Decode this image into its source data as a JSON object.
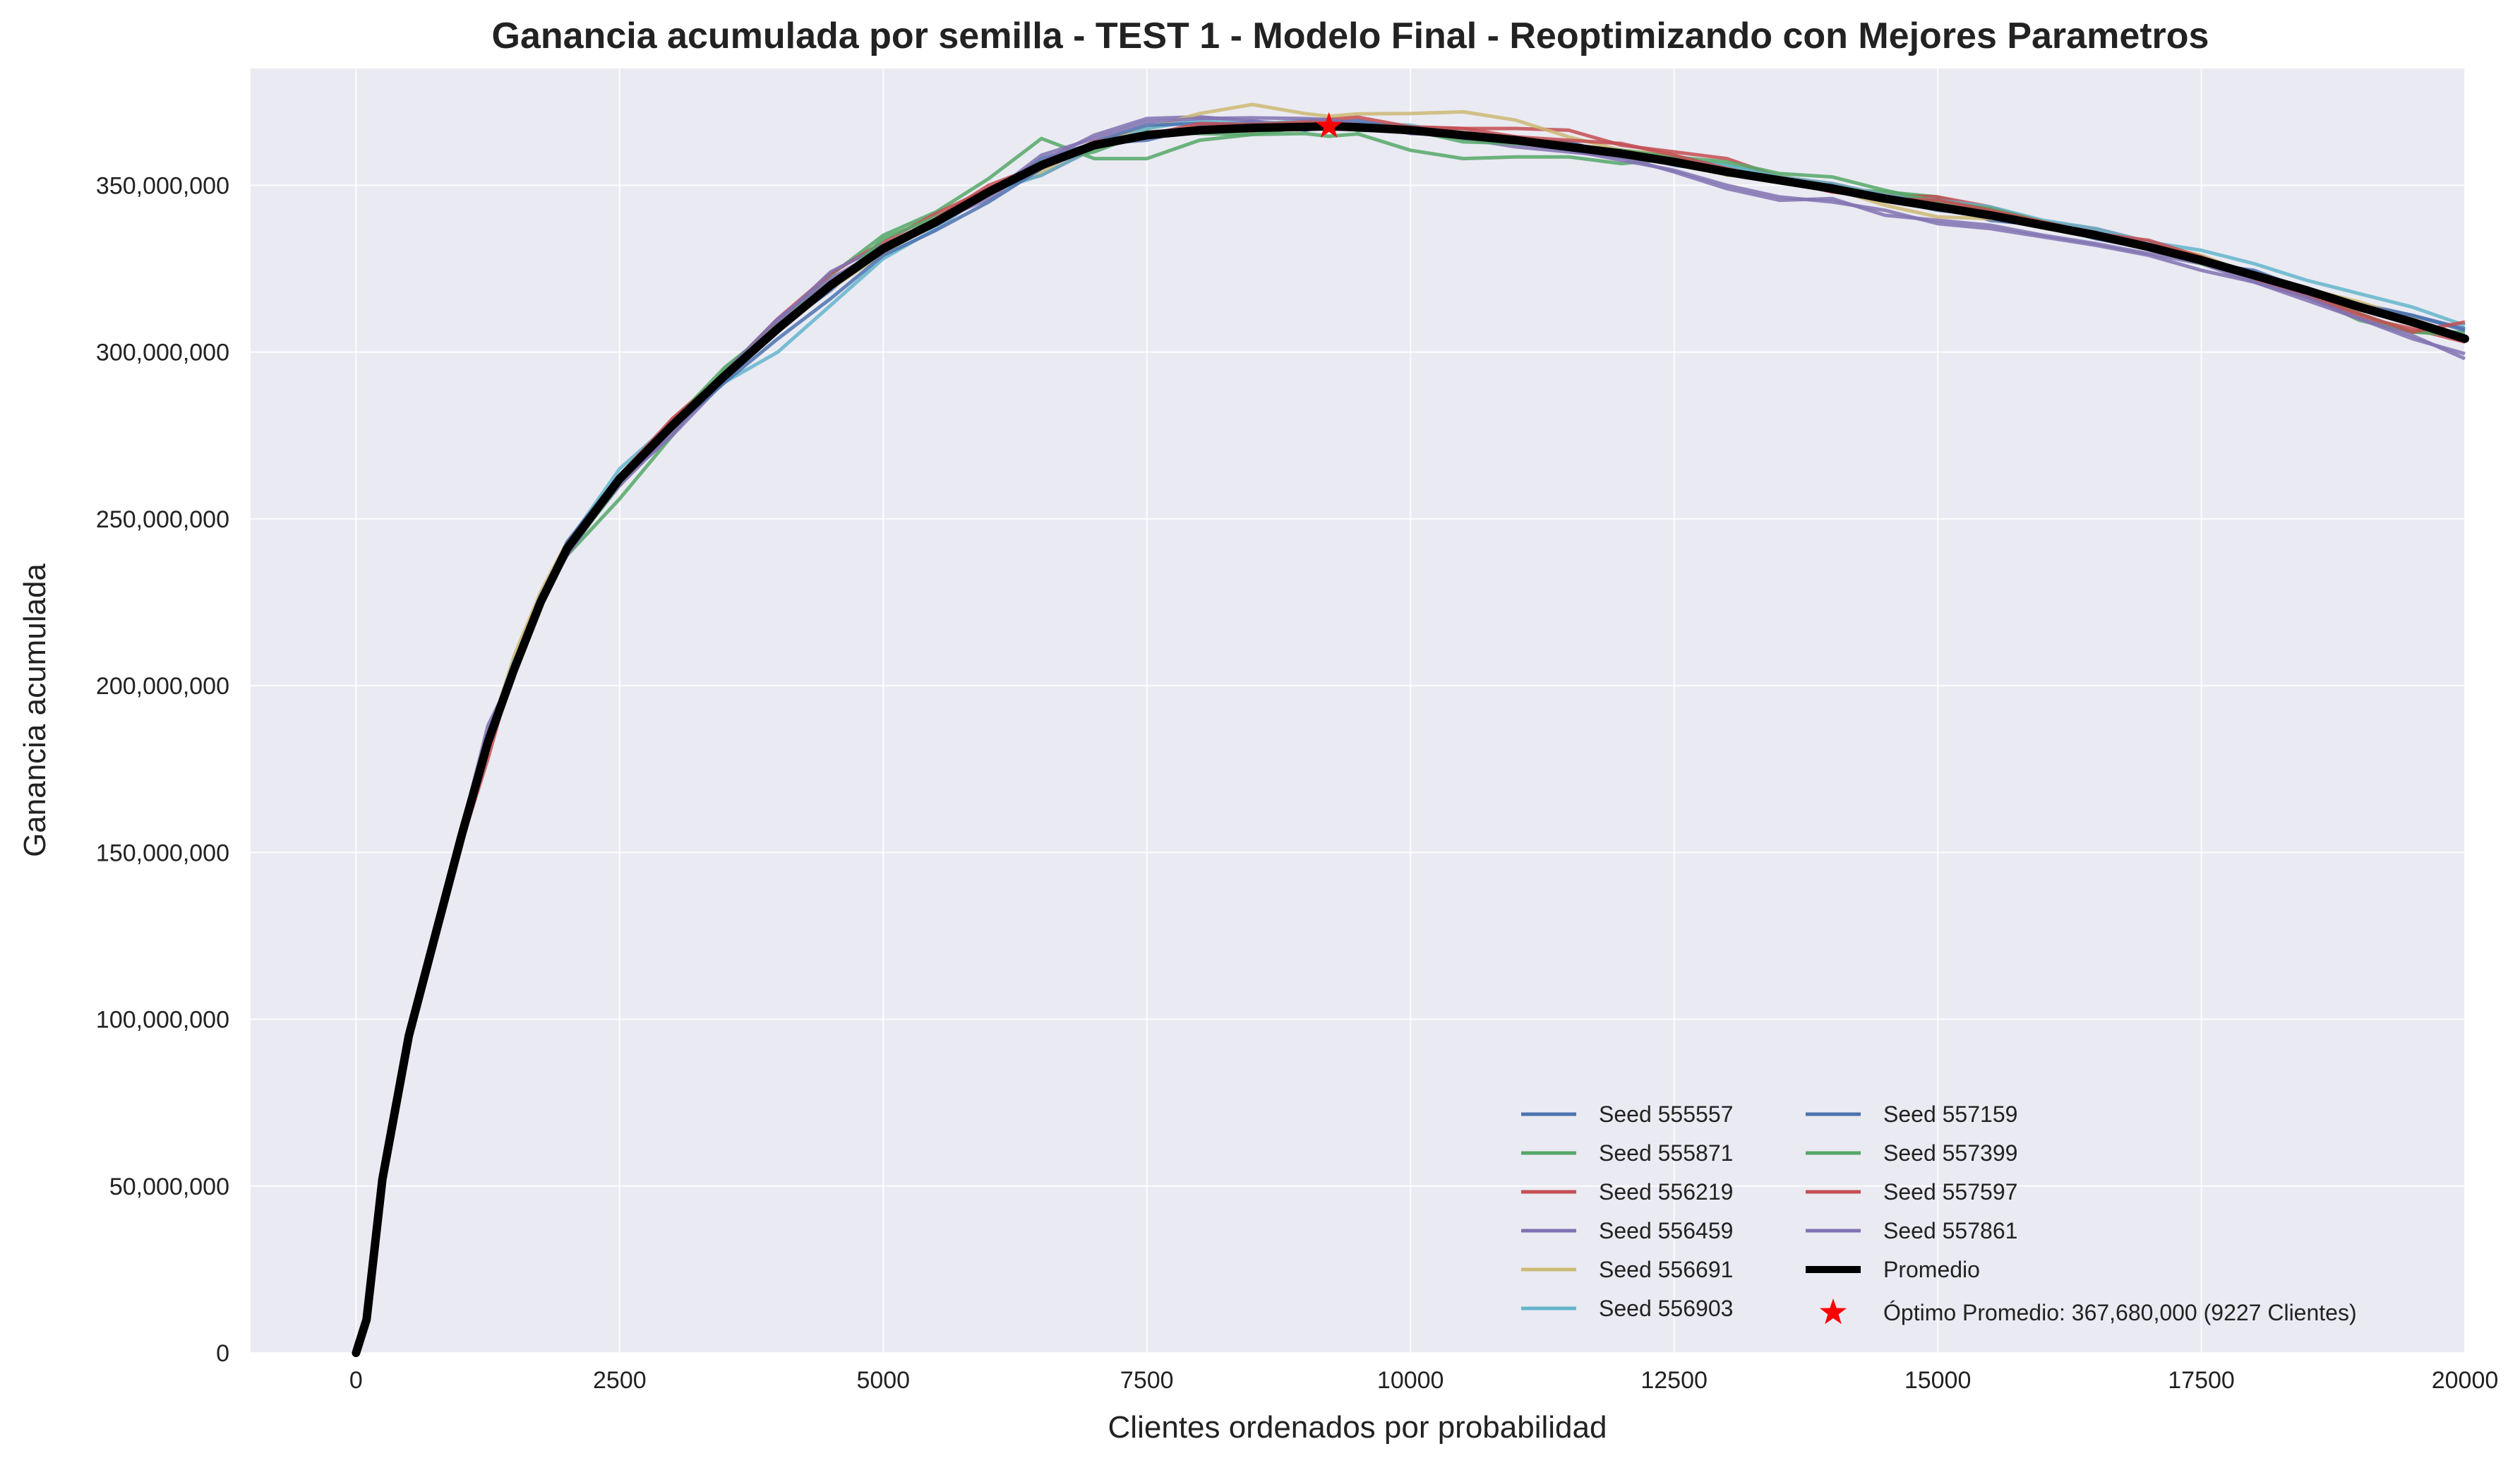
{
  "chart_data": {
    "type": "line",
    "title": "Ganancia acumulada por semilla - TEST 1 - Modelo Final  - Reoptimizando con Mejores Parametros",
    "xlabel": "Clientes ordenados por probabilidad",
    "ylabel": "Ganancia acumulada",
    "xlim": [
      -1000,
      20000
    ],
    "ylim": [
      0,
      385000000
    ],
    "xticks": [
      0,
      2500,
      5000,
      7500,
      10000,
      12500,
      15000,
      17500,
      20000
    ],
    "xtick_labels": [
      "0",
      "2500",
      "5000",
      "7500",
      "10000",
      "12500",
      "15000",
      "17500",
      "20000"
    ],
    "yticks": [
      0,
      50000000,
      100000000,
      150000000,
      200000000,
      250000000,
      300000000,
      350000000
    ],
    "ytick_labels": [
      "0",
      "50,000,000",
      "100,000,000",
      "150,000,000",
      "200,000,000",
      "250,000,000",
      "300,000,000",
      "350,000,000"
    ],
    "grid": true,
    "legend_position": "bottom-right",
    "average": {
      "name": "Promedio",
      "color": "#000000",
      "x": [
        0,
        100,
        250,
        500,
        750,
        1000,
        1250,
        1500,
        1750,
        2000,
        2500,
        3000,
        3500,
        4000,
        4500,
        5000,
        5500,
        6000,
        6500,
        7000,
        7500,
        8000,
        8500,
        9000,
        9227,
        9500,
        10000,
        10500,
        11000,
        11500,
        12000,
        12500,
        13000,
        13500,
        14000,
        14500,
        15000,
        15500,
        16000,
        16500,
        17000,
        17500,
        18000,
        18500,
        19000,
        19500,
        20000
      ],
      "y": [
        0,
        10000000,
        52000000,
        95000000,
        125000000,
        155000000,
        183000000,
        205000000,
        225000000,
        241000000,
        262000000,
        278000000,
        293000000,
        307000000,
        320000000,
        331000000,
        339000000,
        348000000,
        356000000,
        362000000,
        365000000,
        366500000,
        367200000,
        367500000,
        367680000,
        367400000,
        366500000,
        365000000,
        363500000,
        361500000,
        359500000,
        357000000,
        354000000,
        351500000,
        349000000,
        346000000,
        343500000,
        341000000,
        338000000,
        335000000,
        331500000,
        327500000,
        323000000,
        318500000,
        313500000,
        309000000,
        304000000
      ]
    },
    "series": [
      {
        "name": "Seed 555557",
        "color": "#4c72b0",
        "offset": [
          0,
          1000000,
          -1000000,
          500000,
          -2000000,
          1000000,
          -1000000,
          1500000,
          -500000,
          1000000,
          500000,
          1000000,
          -1000000,
          0,
          -1500000,
          1000000,
          500000,
          -1000000,
          2000000,
          500000,
          -1500000,
          1000000,
          2000000,
          -1000000,
          0,
          1000000,
          -1000000,
          500000,
          0,
          1500000,
          -1000000,
          500000,
          1000000,
          0,
          -1000000,
          500000,
          1000000,
          -1500000,
          0,
          1000000,
          500000,
          -1000000,
          1500000,
          0,
          1000000,
          2000000,
          3000000
        ]
      },
      {
        "name": "Seed 555871",
        "color": "#55a868",
        "offset": [
          0,
          -1000000,
          1500000,
          -500000,
          2000000,
          -1000000,
          500000,
          -1500000,
          1000000,
          -2000000,
          -6000000,
          -3000000,
          2000000,
          1500000,
          3000000,
          4000000,
          3000000,
          4000000,
          8000000,
          -4000000,
          -7000000,
          -3000000,
          -2000000,
          -2000000,
          -3000000,
          -2000000,
          -6000000,
          -7000000,
          -5000000,
          -3000000,
          -3000000,
          1000000,
          2000000,
          1000000,
          0,
          2000000,
          3000000,
          1000000,
          0,
          -1000000,
          1000000,
          -500000,
          500000,
          -1500000,
          -4000000,
          -3000000,
          2000000
        ]
      },
      {
        "name": "Seed 556219",
        "color": "#c44e52",
        "offset": [
          0,
          500000,
          -1500000,
          1000000,
          -1000000,
          -2000000,
          -5000000,
          1000000,
          500000,
          1500000,
          -1000000,
          2000000,
          1000000,
          3000000,
          3500000,
          2000000,
          2500000,
          1000000,
          -3000000,
          -1000000,
          1000000,
          0,
          -1000000,
          1000000,
          -1000000,
          0,
          1000000,
          2000000,
          3500000,
          5000000,
          2500000,
          3000000,
          4000000,
          1000000,
          1500000,
          1000000,
          3000000,
          2500000,
          1000000,
          2000000,
          1500000,
          500000,
          -1000000,
          -2000000,
          -3000000,
          -2000000,
          -1000000
        ]
      },
      {
        "name": "Seed 556459",
        "color": "#8172b2",
        "offset": [
          0,
          -500000,
          500000,
          -2000000,
          0,
          1500000,
          5000000,
          -1000000,
          -500000,
          -2000000,
          -1000000,
          -3000000,
          -1500000,
          2000000,
          4000000,
          1000000,
          0,
          -2000000,
          1000000,
          3000000,
          5000000,
          4000000,
          2000000,
          500000,
          0,
          1000000,
          0,
          -1000000,
          -2000000,
          -1500000,
          -1000000,
          -3000000,
          -5000000,
          -6000000,
          -3000000,
          -5000000,
          -4000000,
          -3000000,
          -3000000,
          -2500000,
          -2000000,
          -1000000,
          -2000000,
          -3000000,
          -3500000,
          -5000000,
          -4500000
        ]
      },
      {
        "name": "Seed 556691",
        "color": "#ccb974",
        "offset": [
          0,
          1000000,
          -500000,
          -3000000,
          2000000,
          3000000,
          1000000,
          4000000,
          3000000,
          2000000,
          1000000,
          0,
          1500000,
          1000000,
          -1000000,
          -1500000,
          0,
          1000000,
          -2000000,
          1000000,
          2000000,
          5000000,
          7000000,
          4000000,
          3000000,
          4000000,
          5000000,
          7000000,
          6000000,
          3000000,
          1000000,
          2000000,
          -1000000,
          1500000,
          0,
          -2000000,
          -3000000,
          -1000000,
          1000000,
          0,
          1000000,
          1500000,
          0,
          500000,
          1500000,
          1000000,
          500000
        ]
      },
      {
        "name": "Seed 556903",
        "color": "#64b5cd",
        "offset": [
          0,
          -1500000,
          1000000,
          1500000,
          -1500000,
          -500000,
          2000000,
          2500000,
          -1000000,
          1500000,
          3000000,
          1000000,
          -2000000,
          -7000000,
          -6000000,
          -3000000,
          -2000000,
          0,
          -3000000,
          -1000000,
          2000000,
          3000000,
          1000000,
          2000000,
          2000000,
          1000000,
          1500000,
          0,
          1000000,
          -1000000,
          -500000,
          1000000,
          2000000,
          1000000,
          1500000,
          1000000,
          2000000,
          2500000,
          1500000,
          2000000,
          1500000,
          3000000,
          3500000,
          3000000,
          4000000,
          4500000,
          4000000
        ]
      },
      {
        "name": "Seed 557159",
        "color": "#4c72b0",
        "offset": [
          0,
          1000000,
          2000000,
          -1000000,
          1000000,
          500000,
          3000000,
          0,
          -1500000,
          2000000,
          1000000,
          -1000000,
          -2000000,
          -3000000,
          -4000000,
          -2000000,
          -2500000,
          -3000000,
          -1000000,
          1000000,
          3000000,
          2000000,
          1000000,
          0,
          1000000,
          2000000,
          0,
          -1000000,
          1000000,
          0,
          500000,
          -1000000,
          0,
          -500000,
          1000000,
          0,
          -1000000,
          0,
          500000,
          -1000000,
          -500000,
          1000000,
          -500000,
          0,
          500000,
          2000000,
          2500000
        ]
      },
      {
        "name": "Seed 557399",
        "color": "#55a868",
        "offset": [
          0,
          500000,
          -1000000,
          2000000,
          1500000,
          -1000000,
          -1500000,
          -500000,
          2000000,
          -1000000,
          -2000000,
          1000000,
          2500000,
          1000000,
          -1000000,
          3000000,
          1500000,
          0,
          1000000,
          -2000000,
          1000000,
          -1000000,
          -2000000,
          0,
          1000000,
          -1000000,
          0,
          -2000000,
          -1000000,
          0,
          1000000,
          1500000,
          3000000,
          2000000,
          3500000,
          2500000,
          1500000,
          2000000,
          1000000,
          500000,
          0,
          -1000000,
          0,
          -500000,
          -2000000,
          -3000000,
          1000000
        ]
      },
      {
        "name": "Seed 557597",
        "color": "#c44e52",
        "offset": [
          0,
          -1000000,
          500000,
          -1000000,
          -500000,
          1000000,
          -2000000,
          -1000000,
          500000,
          -1500000,
          1000000,
          2000000,
          0,
          1000000,
          500000,
          -1000000,
          1000000,
          2000000,
          0,
          1000000,
          0,
          2000000,
          1000000,
          1500000,
          2000000,
          3000000,
          1000000,
          2000000,
          1000000,
          2000000,
          3000000,
          2000000,
          1000000,
          0,
          -1000000,
          0,
          2000000,
          1500000,
          1000000,
          500000,
          2000000,
          1000000,
          0,
          -1500000,
          -2000000,
          -3000000,
          5000000
        ]
      },
      {
        "name": "Seed 557861",
        "color": "#8172b2",
        "offset": [
          0,
          0,
          -2000000,
          -1000000,
          500000,
          2000000,
          3000000,
          1000000,
          -500000,
          500000,
          -2000000,
          -2000000,
          1000000,
          3000000,
          2000000,
          0,
          -1000000,
          -1000000,
          3000000,
          2000000,
          4000000,
          3500000,
          3000000,
          2500000,
          2000000,
          1000000,
          -1000000,
          0,
          -500000,
          -1000000,
          -2000000,
          -2500000,
          -4000000,
          -5000000,
          -4000000,
          -3500000,
          -5000000,
          -4000000,
          -3500000,
          -3000000,
          -2500000,
          -3000000,
          -2000000,
          -2000000,
          -3500000,
          -4000000,
          -6000000
        ]
      }
    ],
    "optimum": {
      "label": "Óptimo Promedio: 367,680,000 (9227 Clientes)",
      "x": 9227,
      "y": 367680000,
      "color": "#ff0000"
    }
  }
}
